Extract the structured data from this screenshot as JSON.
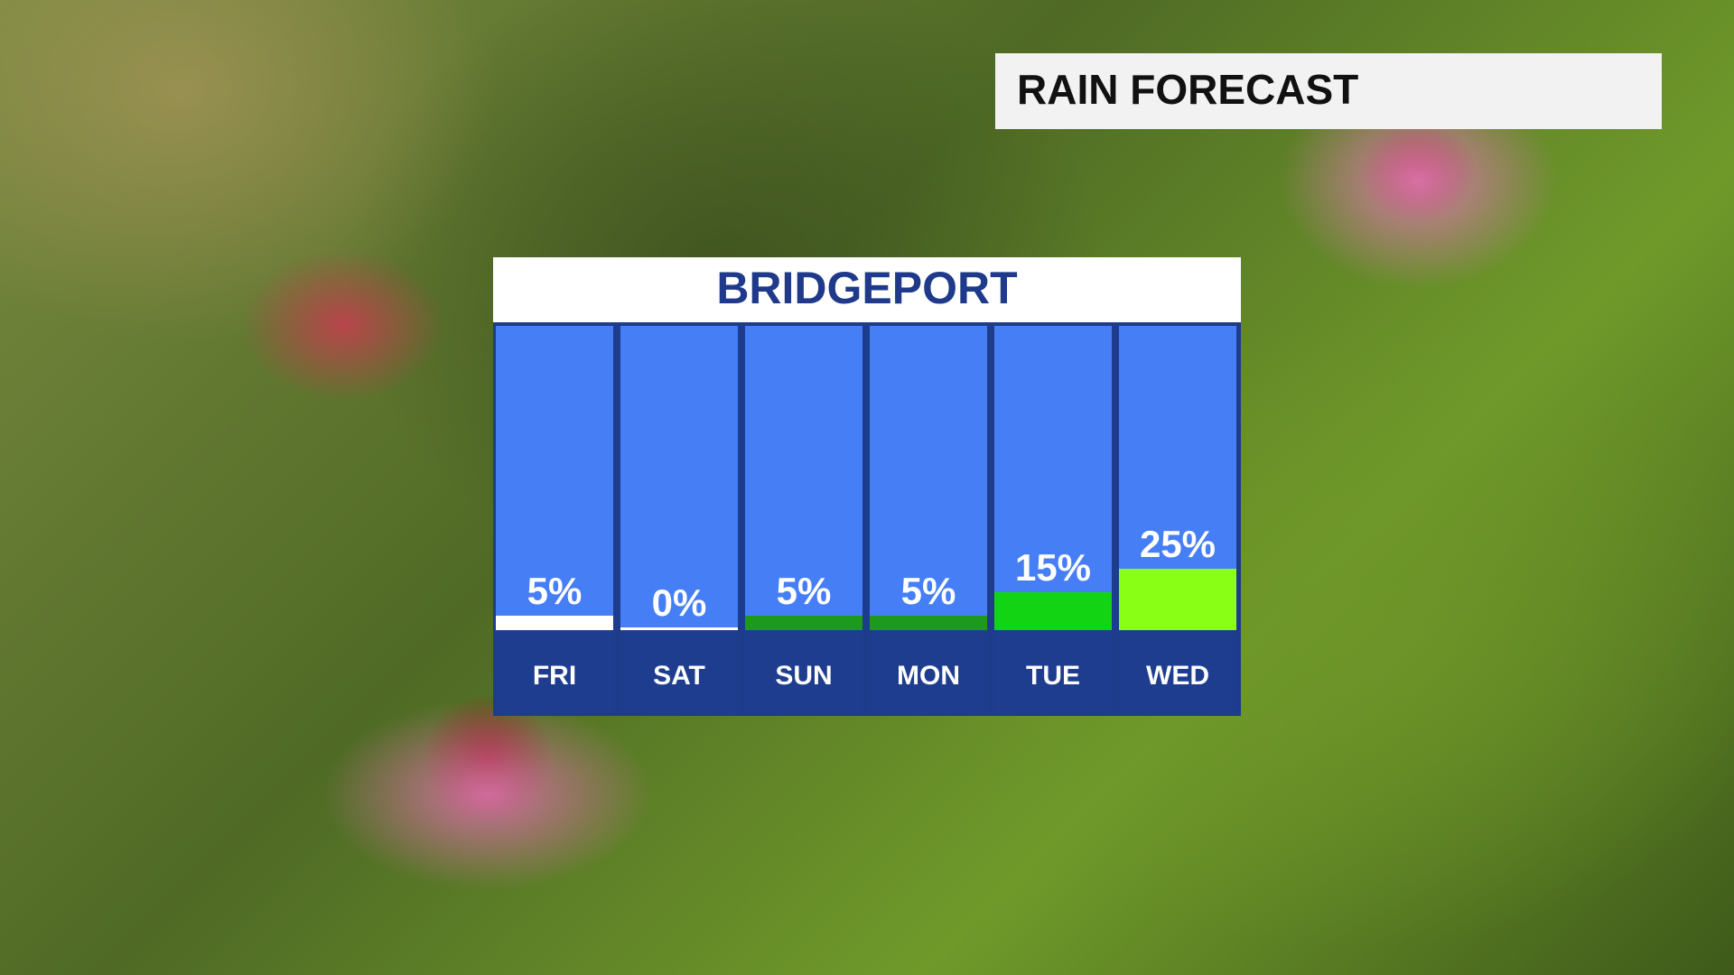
{
  "chart_data": {
    "type": "bar",
    "title": "RAIN FORECAST",
    "subtitle": "BRIDGEPORT",
    "categories": [
      "FRI",
      "SAT",
      "SUN",
      "MON",
      "TUE",
      "WED"
    ],
    "values": [
      5,
      0,
      5,
      5,
      15,
      25
    ],
    "value_labels": [
      "5%",
      "0%",
      "5%",
      "5%",
      "15%",
      "25%"
    ],
    "colors": [
      "#ffffff",
      "#ffffff",
      "#1d9a1d",
      "#1d9a1d",
      "#12d412",
      "#88ff14"
    ]
  }
}
